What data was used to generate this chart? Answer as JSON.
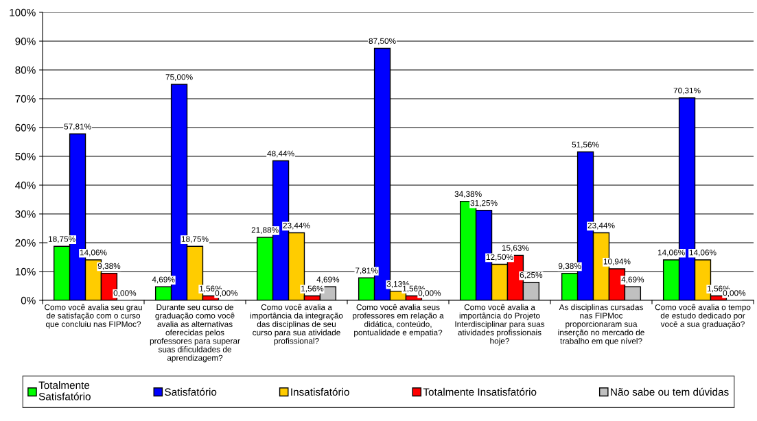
{
  "chart_data": {
    "type": "bar",
    "categories": [
      "Como você avalia seu grau\nde satisfação com o curso\nque concluiu nas FIPMoc?",
      "Durante seu curso de\ngraduação como você\navalia as alternativas\noferecidas pelos\nprofessores para superar\nsuas dificuldades de\naprendizagem?",
      "Como você avalia a\nimportância da integração\ndas disciplinas de seu\ncurso para sua atividade\nprofissional?",
      "Como você avalia seus\nprofessores em relação a\ndidática, conteúdo,\npontualidade e empatia?",
      "Como você avalia a\nimportância do Projeto\nInterdisciplinar para suas\natividades profissionais\nhoje?",
      "As disciplinas cursadas\nnas FIPMoc\nproporcionaram sua\ninserção no mercado de\ntrabalho em que nível?",
      "Como você avalia o tempo\nde estudo dedicado por\nvocê a sua graduação?"
    ],
    "series": [
      {
        "name": "Totalmente\nSatisfatório",
        "color": "#00ff00",
        "values": [
          18.75,
          4.69,
          21.88,
          7.81,
          34.38,
          9.38,
          14.06
        ],
        "value_labels": [
          "18,75%",
          "4,69%",
          "21,88%",
          "7,81%",
          "34,38%",
          "9,38%",
          "14,06%"
        ]
      },
      {
        "name": "Satisfatório",
        "color": "#0000ff",
        "values": [
          57.81,
          75.0,
          48.44,
          87.5,
          31.25,
          51.56,
          70.31
        ],
        "value_labels": [
          "57,81%",
          "75,00%",
          "48,44%",
          "87,50%",
          "31,25%",
          "51,56%",
          "70,31%"
        ]
      },
      {
        "name": "Insatisfatório",
        "color": "#ffcc00",
        "values": [
          14.06,
          18.75,
          23.44,
          3.13,
          12.5,
          23.44,
          14.06
        ],
        "value_labels": [
          "14,06%",
          "18,75%",
          "23,44%",
          "3,13%",
          "12,50%",
          "23,44%",
          "14,06%"
        ]
      },
      {
        "name": "Totalmente Insatisfatório",
        "color": "#ff0000",
        "values": [
          9.38,
          1.56,
          1.56,
          1.56,
          15.63,
          10.94,
          1.56
        ],
        "value_labels": [
          "9,38%",
          "1,56%",
          "1,56%",
          "1,56%",
          "15,63%",
          "10,94%",
          "1,56%"
        ]
      },
      {
        "name": "Não sabe ou tem dúvidas",
        "color": "#c0c0c0",
        "values": [
          0.0,
          0.0,
          4.69,
          0.0,
          6.25,
          4.69,
          0.0
        ],
        "value_labels": [
          "0,00%",
          "0,00%",
          "4,69%",
          "0,00%",
          "6,25%",
          "4,69%",
          "0,00%"
        ]
      }
    ],
    "ylim": [
      0,
      100
    ],
    "yticks": [
      {
        "value": 0,
        "label": "0%"
      },
      {
        "value": 10,
        "label": "10%"
      },
      {
        "value": 20,
        "label": "20%"
      },
      {
        "value": 30,
        "label": "30%"
      },
      {
        "value": 40,
        "label": "40%"
      },
      {
        "value": 50,
        "label": "50%"
      },
      {
        "value": 60,
        "label": "60%"
      },
      {
        "value": 70,
        "label": "70%"
      },
      {
        "value": 80,
        "label": "80%"
      },
      {
        "value": 90,
        "label": "90%"
      },
      {
        "value": 100,
        "label": "100%"
      }
    ],
    "grid": "y",
    "legend": "bottom"
  }
}
